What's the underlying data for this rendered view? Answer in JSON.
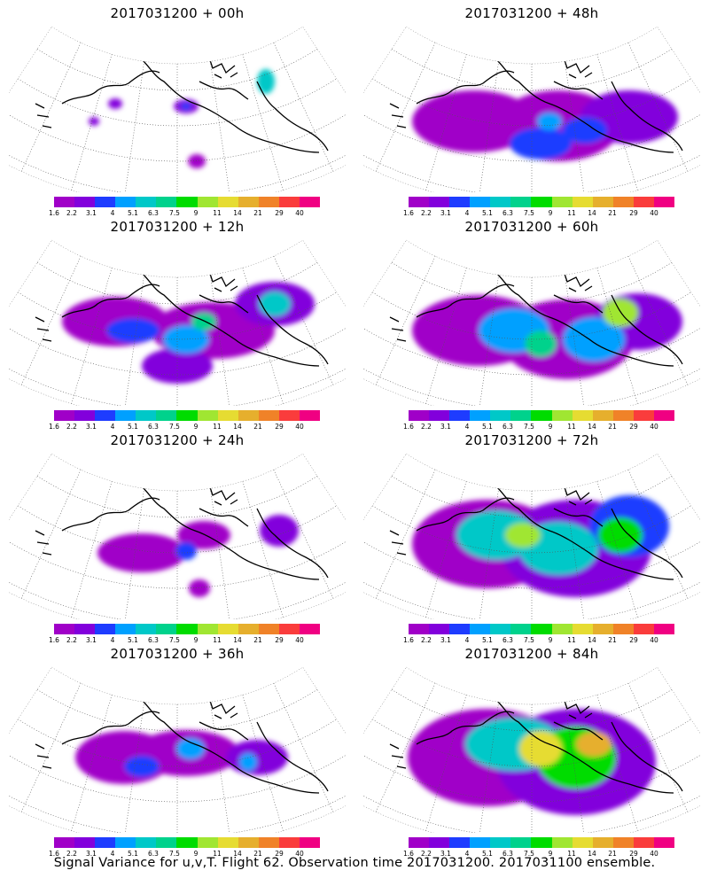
{
  "caption": "Signal Variance for u,v,T. Flight 62. Observation time 2017031200. 2017031100 ensemble.",
  "colorbar": {
    "ticks": [
      "1.6",
      "2.2",
      "3.1",
      "4",
      "5.1",
      "6.3",
      "7.5",
      "9",
      "11",
      "14",
      "21",
      "29",
      "40"
    ],
    "colors": [
      "#a000c8",
      "#8200dc",
      "#1e3cff",
      "#00a0ff",
      "#00c8c8",
      "#00d28c",
      "#00dc00",
      "#a0e632",
      "#e6dc32",
      "#e6af2d",
      "#f08228",
      "#fa3c3c",
      "#f00082"
    ]
  },
  "panels": [
    {
      "title": "2017031200 + 00h",
      "level": 0
    },
    {
      "title": "2017031200 + 48h",
      "level": 4
    },
    {
      "title": "2017031200 + 12h",
      "level": 1
    },
    {
      "title": "2017031200 + 60h",
      "level": 5
    },
    {
      "title": "2017031200 + 24h",
      "level": 2
    },
    {
      "title": "2017031200 + 72h",
      "level": 6
    },
    {
      "title": "2017031200 + 36h",
      "level": 3
    },
    {
      "title": "2017031200 + 84h",
      "level": 7
    }
  ]
}
